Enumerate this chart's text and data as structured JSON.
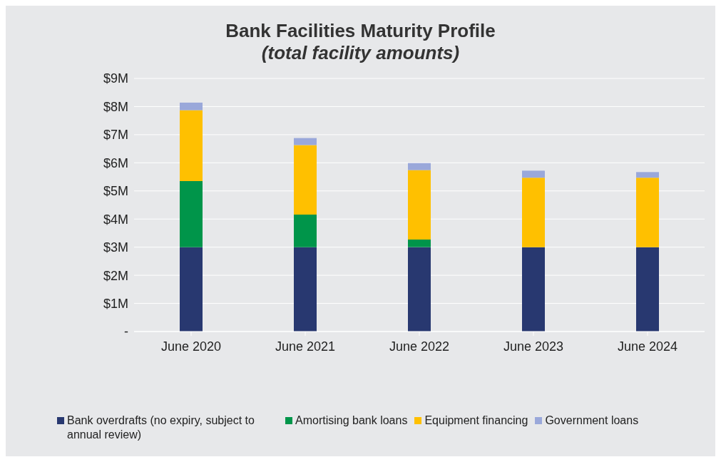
{
  "chart_data": {
    "type": "bar",
    "title": "Bank Facilities Maturity Profile",
    "subtitle": "(total facility amounts)",
    "categories": [
      "June 2020",
      "June 2021",
      "June 2022",
      "June 2023",
      "June 2024"
    ],
    "stacked": true,
    "series": [
      {
        "name": "Bank overdrafts (no expiry, subject to annual review)",
        "color": "#283870",
        "values": [
          3,
          3,
          3,
          3,
          3
        ]
      },
      {
        "name": "Amortising bank loans",
        "color": "#00954a",
        "values": [
          2.35,
          1.16,
          0.27,
          0,
          0
        ]
      },
      {
        "name": "Equipment financing",
        "color": "#ffc000",
        "values": [
          2.52,
          2.47,
          2.47,
          2.47,
          2.47
        ]
      },
      {
        "name": "Government loans",
        "color": "#9aa8da",
        "values": [
          0.27,
          0.25,
          0.25,
          0.25,
          0.2
        ]
      }
    ],
    "ylim": [
      0,
      9
    ],
    "yticks": [
      {
        "value": 0,
        "label": "-"
      },
      {
        "value": 1,
        "label": "$1M"
      },
      {
        "value": 2,
        "label": "$2M"
      },
      {
        "value": 3,
        "label": "$3M"
      },
      {
        "value": 4,
        "label": "$4M"
      },
      {
        "value": 5,
        "label": "$5M"
      },
      {
        "value": 6,
        "label": "$6M"
      },
      {
        "value": 7,
        "label": "$7M"
      },
      {
        "value": 8,
        "label": "$8M"
      },
      {
        "value": 9,
        "label": "$9M"
      }
    ],
    "grid": "y",
    "legend": "bottom"
  }
}
